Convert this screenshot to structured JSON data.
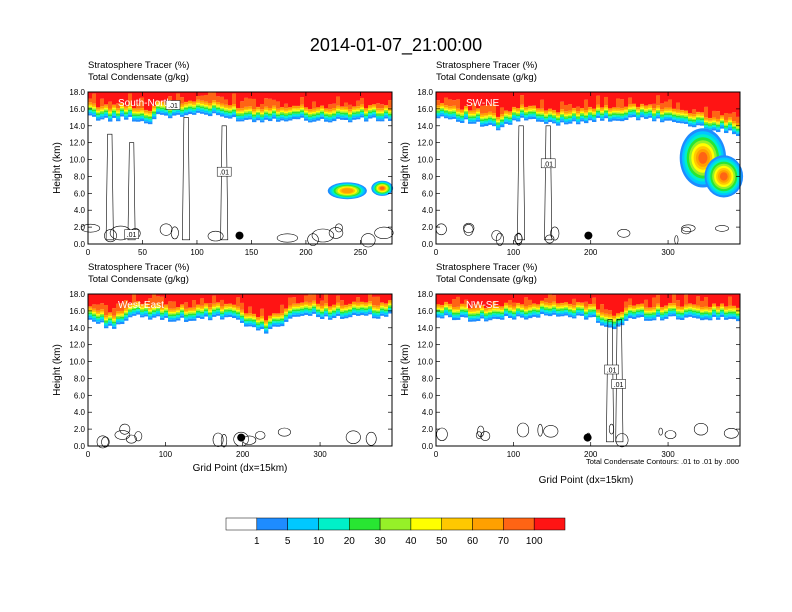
{
  "figure_title": "2014-01-07_21:00:00",
  "subtitles": {
    "tracer": "Stratosphere Tracer   (%)",
    "condensate": "Total Condensate   (g/kg)"
  },
  "axes": {
    "ylabel": "Height (km)",
    "xlabel": "Grid Point (dx=15km)"
  },
  "contour_note": "Total Condensate Contours: .01 to .01 by .000",
  "colors": {
    "bins": [
      "#ffffff",
      "#1e8cff",
      "#00c8ff",
      "#00f0c8",
      "#28e632",
      "#96f028",
      "#ffff00",
      "#ffc800",
      "#ffa000",
      "#ff6414",
      "#ff1414"
    ],
    "contour": "#000000"
  },
  "chart_data": [
    {
      "type": "heatmap",
      "panel_label": "South-North",
      "ylim": [
        0,
        18
      ],
      "y_ticks": [
        "0.0",
        "2.0",
        "4.0",
        "6.0",
        "8.0",
        "10.0",
        "12.0",
        "14.0",
        "16.0",
        "18.0"
      ],
      "xlim": [
        0,
        279
      ],
      "x_ticks": [
        "0",
        "50",
        "100",
        "150",
        "200",
        "250"
      ],
      "x_tick_values": [
        0,
        50,
        100,
        150,
        200,
        250
      ],
      "tropopause_km": [
        [
          0,
          15.0
        ],
        [
          20,
          14.7
        ],
        [
          40,
          14.9
        ],
        [
          55,
          14.2
        ],
        [
          65,
          15.4
        ],
        [
          80,
          15.0
        ],
        [
          100,
          15.5
        ],
        [
          130,
          14.9
        ],
        [
          150,
          14.6
        ],
        [
          180,
          14.8
        ],
        [
          220,
          14.6
        ],
        [
          250,
          14.7
        ],
        [
          279,
          14.7
        ]
      ],
      "blobs": [
        {
          "x": 238,
          "y": 6.3,
          "rx": 18,
          "ry": 1.0,
          "max": 60
        },
        {
          "x": 270,
          "y": 6.6,
          "rx": 10,
          "ry": 0.9,
          "max": 80
        }
      ],
      "contour_labels": [
        {
          "text": ".01",
          "x": 78,
          "y": 16.4
        },
        {
          "text": ".01",
          "x": 125,
          "y": 8.5
        },
        {
          "text": ".01",
          "x": 40,
          "y": 1.1
        }
      ],
      "marker": {
        "x": 139,
        "y": 1.0
      }
    },
    {
      "type": "heatmap",
      "panel_label": "SW-NE",
      "ylim": [
        0,
        18
      ],
      "y_ticks": [
        "0.0",
        "2.0",
        "4.0",
        "6.0",
        "8.0",
        "10.0",
        "12.0",
        "14.0",
        "16.0",
        "18.0"
      ],
      "xlim": [
        0,
        393
      ],
      "x_ticks": [
        "0",
        "100",
        "200",
        "300"
      ],
      "x_tick_values": [
        0,
        100,
        200,
        300
      ],
      "tropopause_km": [
        [
          0,
          15.2
        ],
        [
          40,
          14.5
        ],
        [
          80,
          13.6
        ],
        [
          110,
          14.8
        ],
        [
          150,
          14.2
        ],
        [
          200,
          14.6
        ],
        [
          260,
          14.8
        ],
        [
          300,
          14.6
        ],
        [
          330,
          14.0
        ],
        [
          393,
          13.0
        ]
      ],
      "blobs": [
        {
          "x": 345,
          "y": 10.2,
          "rx": 30,
          "ry": 3.5,
          "max": 100
        },
        {
          "x": 372,
          "y": 8.0,
          "rx": 25,
          "ry": 2.5,
          "max": 90
        }
      ],
      "contour_labels": [
        {
          "text": ".01",
          "x": 145,
          "y": 9.5
        }
      ],
      "marker": {
        "x": 197,
        "y": 1.0
      }
    },
    {
      "type": "heatmap",
      "panel_label": "West-East",
      "ylim": [
        0,
        18
      ],
      "y_ticks": [
        "0.0",
        "2.0",
        "4.0",
        "6.0",
        "8.0",
        "10.0",
        "12.0",
        "14.0",
        "16.0",
        "18.0"
      ],
      "xlim": [
        0,
        393
      ],
      "x_ticks": [
        "0",
        "100",
        "200",
        "300"
      ],
      "x_tick_values": [
        0,
        100,
        200,
        300
      ],
      "tropopause_km": [
        [
          0,
          15.0
        ],
        [
          30,
          14.0
        ],
        [
          60,
          15.3
        ],
        [
          120,
          14.9
        ],
        [
          180,
          15.2
        ],
        [
          230,
          13.4
        ],
        [
          270,
          15.5
        ],
        [
          320,
          15.2
        ],
        [
          393,
          15.4
        ]
      ],
      "blobs": [],
      "contour_labels": [],
      "marker": {
        "x": 198,
        "y": 1.0
      }
    },
    {
      "type": "heatmap",
      "panel_label": "NW-SE",
      "ylim": [
        0,
        18
      ],
      "y_ticks": [
        "0.0",
        "2.0",
        "4.0",
        "6.0",
        "8.0",
        "10.0",
        "12.0",
        "14.0",
        "16.0",
        "18.0"
      ],
      "xlim": [
        0,
        393
      ],
      "x_ticks": [
        "0",
        "100",
        "200",
        "300"
      ],
      "x_tick_values": [
        0,
        100,
        200,
        300
      ],
      "tropopause_km": [
        [
          0,
          15.3
        ],
        [
          60,
          14.9
        ],
        [
          140,
          15.4
        ],
        [
          200,
          15.2
        ],
        [
          230,
          13.8
        ],
        [
          250,
          15.0
        ],
        [
          310,
          15.2
        ],
        [
          393,
          15.0
        ]
      ],
      "blobs": [],
      "contour_labels": [
        {
          "text": ".01",
          "x": 227,
          "y": 9.0
        },
        {
          "text": ".01",
          "x": 236,
          "y": 7.3
        }
      ],
      "marker": {
        "x": 196,
        "y": 1.0
      }
    }
  ],
  "colorbar": {
    "labels": [
      "1",
      "5",
      "10",
      "20",
      "30",
      "40",
      "50",
      "60",
      "70",
      "100"
    ],
    "bin_count": 11
  }
}
